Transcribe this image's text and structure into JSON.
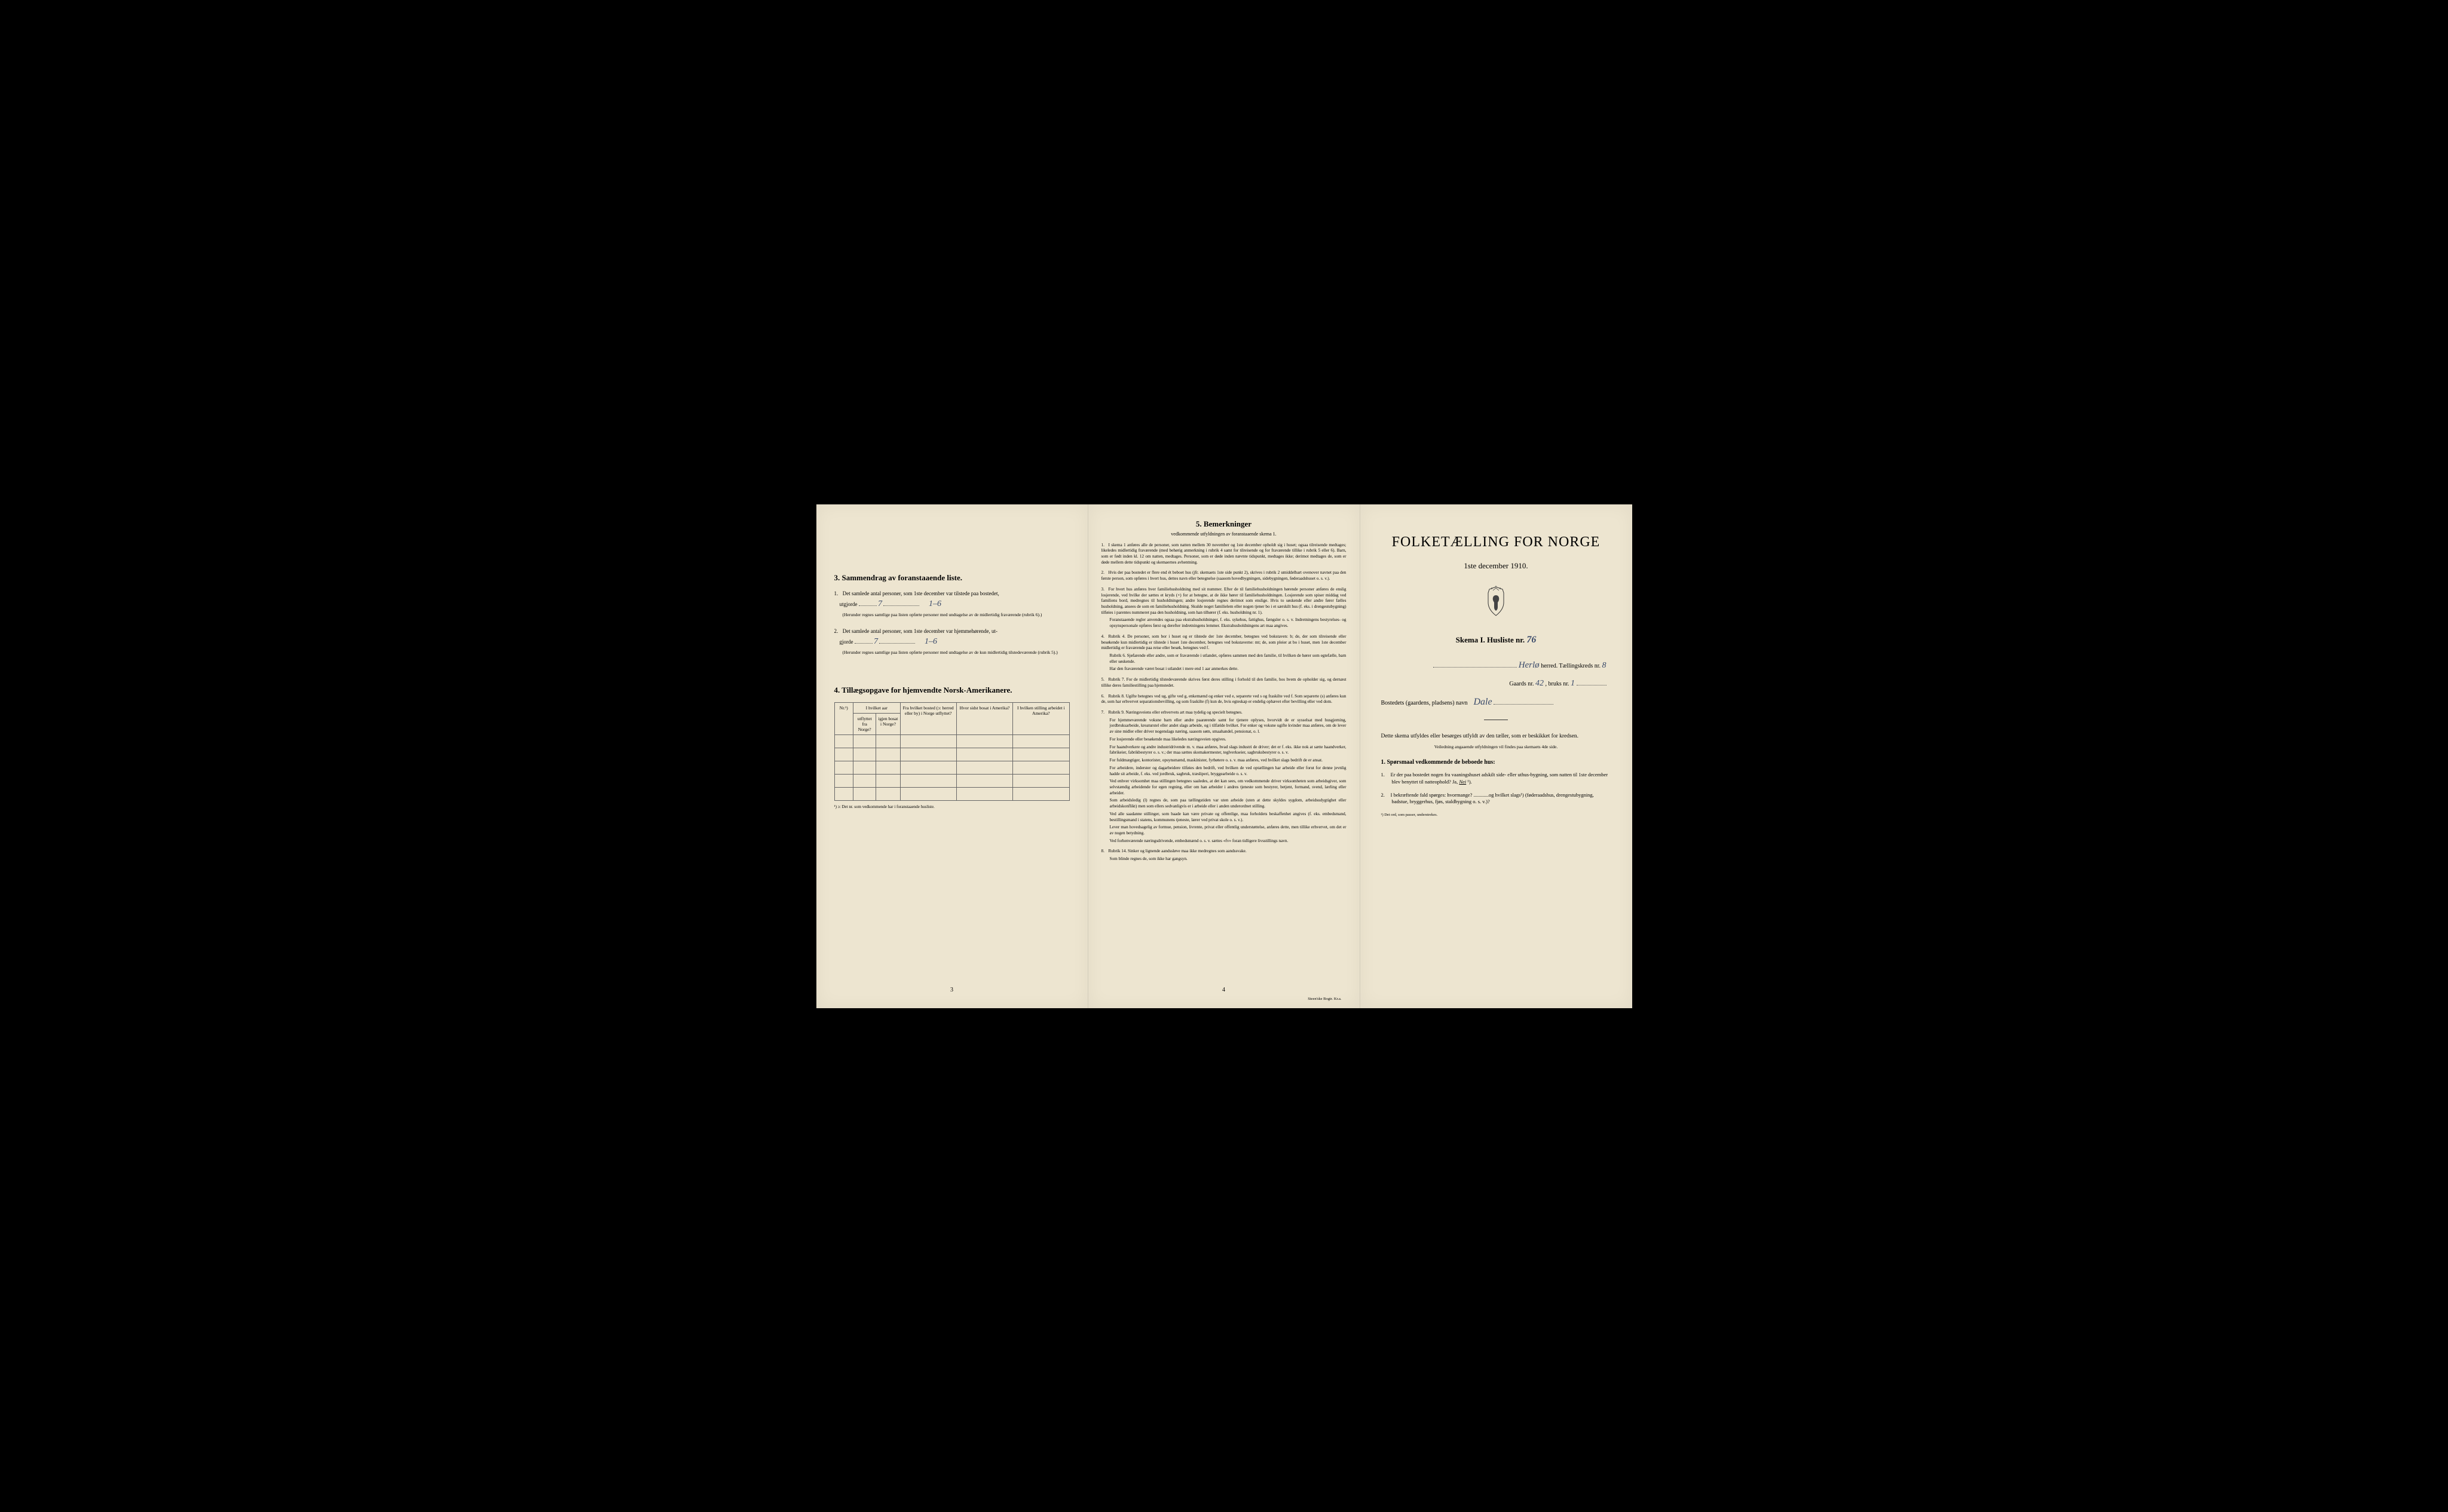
{
  "page1": {
    "section3": {
      "title": "3.  Sammendrag av foranstaaende liste.",
      "item1": {
        "num": "1.",
        "text_a": "Det samlede antal personer, som 1ste december var tilstede paa bostedet,",
        "text_b": "utgjorde",
        "value1": "7",
        "value2": "1–6",
        "note": "(Herunder regnes samtlige paa listen opførte personer med undtagelse av de midlertidig fraværende (rubrik 6).)"
      },
      "item2": {
        "num": "2.",
        "text_a": "Det samlede antal personer, som 1ste december var hjemmehørende, ut-",
        "text_b": "gjorde",
        "value1": "7",
        "value2": "1–6",
        "note": "(Herunder regnes samtlige paa listen opførte personer med undtagelse av de kun midlertidig tilstedeværende (rubrik 5).)"
      }
    },
    "section4": {
      "title": "4.  Tillægsopgave for hjemvendte Norsk-Amerikanere.",
      "headers": {
        "c1": "Nr.¹)",
        "c2a": "I hvilket aar",
        "c2b": "utflyttet fra Norge?",
        "c2c": "igjen bosat i Norge?",
        "c3": "Fra hvilket bosted (ɔ: herred eller by) i Norge utflyttet?",
        "c4": "Hvor sidst bosat i Amerika?",
        "c5": "I hvilken stilling arbeidet i Amerika?"
      },
      "note": "¹) ɔ: Det nr. som vedkommende har i foranstaaende husliste."
    },
    "pagenum": "3"
  },
  "page2": {
    "title": "5.  Bemerkninger",
    "subtitle": "vedkommende utfyldningen av foranstaaende skema 1.",
    "remarks": [
      {
        "n": "1.",
        "t": "I skema 1 anføres alle de personer, som natten mellem 30 november og 1ste december opholdt sig i huset; ogsaa tilreisende medtages; likeledes midlertidig fraværende (med behørig anmerkning i rubrik 4 samt for tilreisende og for fraværende tillike i rubrik 5 eller 6). Barn, som er født inden kl. 12 om natten, medtages. Personer, som er døde inden nævnte tidspunkt, medtages ikke; derimot medtages de, som er døde mellem dette tidspunkt og skemaernes avhentning."
      },
      {
        "n": "2.",
        "t": "Hvis der paa bostedet er flere end ét beboet hus (jfr. skemaets 1ste side punkt 2), skrives i rubrik 2 umiddelbart ovenover navnet paa den første person, som opføres i hvert hus, dettes navn eller betegnelse (saasom hovedbygningen, sidebygningen, føderaadshuset o. s. v.)."
      },
      {
        "n": "3.",
        "t": "For hvert hus anføres hver familiehusholdning med sit nummer. Efter de til familiehusholdningen hørende personer anføres de enslig losjerende, ved hvilke der sættes et kryds (×) for at betegne, at de ikke hører til familiehusholdningen. Losjerende som spiser middag ved familiens bord, medregnes til husholdningen; andre losjerende regnes derimot som enslige. Hvis to søskende eller andre fører fælles husholdning, ansees de som en familiehusholdning. Skulde noget familielem eller nogen tjener bo i et særskilt hus (f. eks. i drengestubygning) tilføies i parentes nummeret paa den husholdning, som han tilhører (f. eks. husholdning nr. 1).",
        "sub": "Foranstaaende regler anvendes ogsaa paa ekstrahusholdninger, f. eks. sykehus, fattighus, fængsler o. s. v. Indretningens bestyrelses- og opsynspersonale opføres først og derefter indretningens lemmer. Ekstrahusholdningens art maa angives."
      },
      {
        "n": "4.",
        "t": "Rubrik 4. De personer, som bor i huset og er tilstede der 1ste december, betegnes ved bokstaven: b; de, der som tilreisende eller besøkende kun midlertidig er tilstede i huset 1ste december, betegnes ved bokstaverne: mt; de, som pleier at bo i huset, men 1ste december midlertidig er fraværende paa reise eller besøk, betegnes ved f.",
        "sub": "Rubrik 6. Sjøfarende eller andre, som er fraværende i utlandet, opføres sammen med den familie, til hvilken de hører som egtefælle, barn eller søskende.\nHar den fraværende været bosat i utlandet i mere end 1 aar anmerkes dette."
      },
      {
        "n": "5.",
        "t": "Rubrik 7. For de midlertidig tilstedeværende skrives først deres stilling i forhold til den familie, hos hvem de opholder sig, og dernæst tillike deres familiestilling paa hjemstedet."
      },
      {
        "n": "6.",
        "t": "Rubrik 8. Ugifte betegnes ved ug, gifte ved g, enkemænd og enker ved e, separerte ved s og fraskilte ved f. Som separerte (s) anføres kun de, som har erhvervet separationsbevilling, og som fraskilte (f) kun de, hvis egteskap er endelig ophævet efter bevilling eller ved dom."
      },
      {
        "n": "7.",
        "t": "Rubrik 9. Næringsveiens eller erhvervets art maa tydelig og specielt betegnes.\nFor hjemmeværende voksne barn eller andre paarørende samt for tjenere oplyses, hvorvidt de er sysselsat med husgjerning, jordbruksarbeide, kreaturstel eller andet slags arbeide, og i tilfælde hvilket. For enker og voksne ugifte kvinder maa anføres, om de lever av sine midler eller driver nogenslags næring, saasom søm, smaahandel, pensionat, o. l.\nFor losjerende eller besøkende maa likeledes næringsveien opgives.\nFor haandverkere og andre industridrivende m. v. maa anføres, hvad slags industri de driver; det er f. eks. ikke nok at sætte haandverker, fabrikeier, fabrikbestyrer o. s. v.; der maa sættes skomakermester, teglverkseier, sagbruksbestyrer o. s. v.\nFor fuldmægtiger, kontorister, opsynsmænd, maskinister, fyrbøtere o. s. v. maa anføres, ved hvilket slags bedrift de er ansat.\nFor arbeidere, inderster og dagarbeidere tilføies den bedrift, ved hvilken de ved optællingen har arbeide eller forut for denne jevnlig hadde sit arbeide, f. eks. ved jordbruk, sagbruk, træsliperi, bryggearbeide o. s. v.\nVed enhver virksomhet maa stillingen betegnes saaledes, at det kan sees, om vedkommende driver virksomheten som arbeidsgiver, som selvstændig arbeidende for egen regning, eller om han arbeider i andres tjeneste som bestyrer, betjent, formand, svend, lærling eller arbeider.\nSom arbeidsledig (l) regnes de, som paa tællingstiden var uten arbeide (uten at dette skyldes sygdom, arbeidsudygtighet eller arbeidskonflikt) men som ellers sedvanligvis er i arbeide eller i anden underordnet stilling.\nVed alle saadanne stillinger, som baade kan være private og offentlige, maa forholdets beskaffenhet angives (f. eks. embedsmand, bestillingsmand i statens, kommunens tjeneste, lærer ved privat skole o. s. v.).\nLever man hovedsagelig av formue, pension, livrente, privat eller offentlig understøttelse, anføres dette, men tillike erhvervet, om det er av nogen betydning.\nVed forhenværende næringsdrivende, embedsmænd o. s. v. sættes «fv» foran tidligere livsstillings navn."
      },
      {
        "n": "8.",
        "t": "Rubrik 14. Sinker og lignende aandssløve maa ikke medregnes som aandssvake.\nSom blinde regnes de, som ikke har gangsyn."
      }
    ],
    "pagenum": "4",
    "printer": "Steen'ske Bogtr. Kr.a."
  },
  "page3": {
    "title": "FOLKETÆLLING FOR NORGE",
    "date": "1ste december 1910.",
    "skema": "Skema I.  Husliste nr.",
    "skema_val": "76",
    "herred_val": "Herlø",
    "herred_label": "herred.  Tællingskreds nr.",
    "kreds_val": "8",
    "gaards_label": "Gaards nr.",
    "gaards_val": "42",
    "bruks_label": ", bruks nr.",
    "bruks_val": "1",
    "bosted_label": "Bostedets (gaardens, pladsens) navn",
    "bosted_val": "Dale",
    "instruction": "Dette skema utfyldes eller besørges utfyldt av den tæller, som er beskikket for kredsen.",
    "instruction_sub": "Veiledning angaaende utfyldningen vil findes paa skemaets 4de side.",
    "q_title": "1. Spørsmaal vedkommende de beboede hus:",
    "q1": {
      "num": "1.",
      "text": "Er der paa bostedet nogen fra vaaningshuset adskilt side- eller uthus-bygning, som natten til 1ste december blev benyttet til natteophold?   Ja,  ",
      "answer": "Nei",
      "suffix": " ¹)."
    },
    "q2": {
      "num": "2.",
      "text": "I bekræftende fald spørges: hvormange? ............og hvilket slags¹) (føderaadshus, drengestubygning, badstue, bryggerhus, fjøs, staldbygning o. s. v.)?"
    },
    "footnote": "¹) Det ord, som passer, understrekes."
  }
}
